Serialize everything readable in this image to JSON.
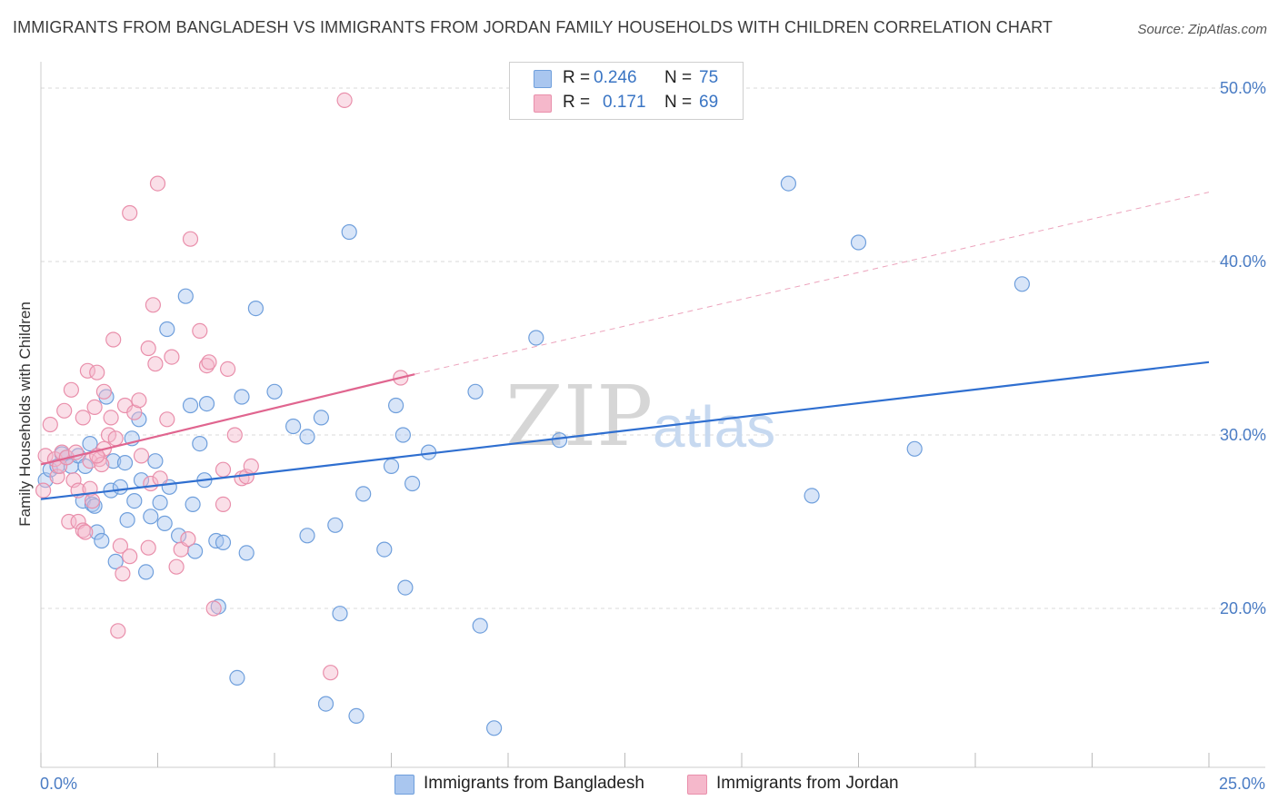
{
  "header": {
    "title": "IMMIGRANTS FROM BANGLADESH VS IMMIGRANTS FROM JORDAN FAMILY HOUSEHOLDS WITH CHILDREN CORRELATION CHART",
    "source": "Source: ZipAtlas.com"
  },
  "watermark": {
    "zip": "ZIP",
    "atlas": "atlas"
  },
  "legend": {
    "r_label": "R =",
    "n_label": "N =",
    "series": [
      {
        "name": "Immigrants from Bangladesh",
        "r": "0.246",
        "n": "75"
      },
      {
        "name": "Immigrants from Jordan",
        "r": "0.171",
        "n": "69"
      }
    ]
  },
  "colors": {
    "blue_fill": "#a9c6ef",
    "blue_stroke": "#6f9fdc",
    "blue_line": "#2f6fd0",
    "pink_fill": "#f5b8cb",
    "pink_stroke": "#e98fab",
    "pink_line": "#e0658f",
    "tick": "#4a7cc4",
    "grid": "#d9d9d9"
  },
  "chart_data": {
    "type": "scatter",
    "title": "IMMIGRANTS FROM BANGLADESH VS IMMIGRANTS FROM JORDAN FAMILY HOUSEHOLDS WITH CHILDREN CORRELATION CHART",
    "xlabel": "",
    "ylabel": "Family Households with Children",
    "xlim": [
      0,
      25
    ],
    "ylim": [
      10,
      51
    ],
    "x_tick_labels": [
      {
        "value": 0,
        "label": "0.0%"
      },
      {
        "value": 25,
        "label": "25.0%"
      }
    ],
    "y_ticks": [
      {
        "value": 20,
        "label": "20.0%"
      },
      {
        "value": 30,
        "label": "30.0%"
      },
      {
        "value": 40,
        "label": "40.0%"
      },
      {
        "value": 50,
        "label": "50.0%"
      }
    ],
    "grid": true,
    "series": [
      {
        "name": "Immigrants from Bangladesh",
        "color": "blue",
        "trend": {
          "x": [
            0,
            25
          ],
          "y": [
            26.3,
            34.2
          ],
          "dashed": false
        },
        "points": [
          [
            0.1,
            27.4
          ],
          [
            0.2,
            28.0
          ],
          [
            0.35,
            28.2
          ],
          [
            0.45,
            28.9
          ],
          [
            0.55,
            28.7
          ],
          [
            0.65,
            28.2
          ],
          [
            0.8,
            28.8
          ],
          [
            0.95,
            28.2
          ],
          [
            1.05,
            29.5
          ],
          [
            0.9,
            26.2
          ],
          [
            1.1,
            26.0
          ],
          [
            1.15,
            25.9
          ],
          [
            1.2,
            24.4
          ],
          [
            1.3,
            23.9
          ],
          [
            1.4,
            32.2
          ],
          [
            1.5,
            26.8
          ],
          [
            1.55,
            28.5
          ],
          [
            1.6,
            22.7
          ],
          [
            1.7,
            27.0
          ],
          [
            1.8,
            28.4
          ],
          [
            1.85,
            25.1
          ],
          [
            1.95,
            29.8
          ],
          [
            2.0,
            26.2
          ],
          [
            2.1,
            30.9
          ],
          [
            2.15,
            27.4
          ],
          [
            2.25,
            22.1
          ],
          [
            2.35,
            25.3
          ],
          [
            2.45,
            28.5
          ],
          [
            2.55,
            26.1
          ],
          [
            2.65,
            24.9
          ],
          [
            2.7,
            36.1
          ],
          [
            2.75,
            27.0
          ],
          [
            2.95,
            24.2
          ],
          [
            3.1,
            38.0
          ],
          [
            3.2,
            31.7
          ],
          [
            3.25,
            26.0
          ],
          [
            3.3,
            23.3
          ],
          [
            3.4,
            29.5
          ],
          [
            3.5,
            27.4
          ],
          [
            3.55,
            31.8
          ],
          [
            3.75,
            23.9
          ],
          [
            3.8,
            20.1
          ],
          [
            3.9,
            23.8
          ],
          [
            4.2,
            16.0
          ],
          [
            4.3,
            32.2
          ],
          [
            4.4,
            23.2
          ],
          [
            4.6,
            37.3
          ],
          [
            5.0,
            32.5
          ],
          [
            5.4,
            30.5
          ],
          [
            5.7,
            24.2
          ],
          [
            5.7,
            29.9
          ],
          [
            6.0,
            31.0
          ],
          [
            6.1,
            14.5
          ],
          [
            6.3,
            24.8
          ],
          [
            6.4,
            19.7
          ],
          [
            6.6,
            41.7
          ],
          [
            6.75,
            13.8
          ],
          [
            6.9,
            26.6
          ],
          [
            7.35,
            23.4
          ],
          [
            7.5,
            28.2
          ],
          [
            7.6,
            31.7
          ],
          [
            7.75,
            30.0
          ],
          [
            7.8,
            21.2
          ],
          [
            7.95,
            27.2
          ],
          [
            8.3,
            29.0
          ],
          [
            9.3,
            32.5
          ],
          [
            9.4,
            19.0
          ],
          [
            9.7,
            13.1
          ],
          [
            10.6,
            35.6
          ],
          [
            11.1,
            29.7
          ],
          [
            16.0,
            44.5
          ],
          [
            16.5,
            26.5
          ],
          [
            17.5,
            41.1
          ],
          [
            18.7,
            29.2
          ],
          [
            21.0,
            38.7
          ]
        ]
      },
      {
        "name": "Immigrants from Jordan",
        "color": "pink",
        "trend": {
          "x": [
            0,
            8.0
          ],
          "y": [
            28.3,
            33.5
          ],
          "dashed": false,
          "extension": {
            "x": [
              8.0,
              25
            ],
            "y": [
              33.5,
              44.0
            ],
            "dashed": true
          }
        },
        "points": [
          [
            0.05,
            26.8
          ],
          [
            0.1,
            28.8
          ],
          [
            0.2,
            30.6
          ],
          [
            0.3,
            28.6
          ],
          [
            0.35,
            27.6
          ],
          [
            0.4,
            28.2
          ],
          [
            0.45,
            29.0
          ],
          [
            0.5,
            31.4
          ],
          [
            0.55,
            28.7
          ],
          [
            0.6,
            25.0
          ],
          [
            0.65,
            32.6
          ],
          [
            0.7,
            27.4
          ],
          [
            0.75,
            29.0
          ],
          [
            0.8,
            25.0
          ],
          [
            0.8,
            26.8
          ],
          [
            0.9,
            31.0
          ],
          [
            0.9,
            24.5
          ],
          [
            1.0,
            33.7
          ],
          [
            1.05,
            28.5
          ],
          [
            1.05,
            26.9
          ],
          [
            1.1,
            26.2
          ],
          [
            1.15,
            31.6
          ],
          [
            1.2,
            33.6
          ],
          [
            1.25,
            28.6
          ],
          [
            1.3,
            28.3
          ],
          [
            1.35,
            29.2
          ],
          [
            1.35,
            32.5
          ],
          [
            1.45,
            30.0
          ],
          [
            1.5,
            31.0
          ],
          [
            1.55,
            35.5
          ],
          [
            1.6,
            29.8
          ],
          [
            1.65,
            18.7
          ],
          [
            1.7,
            23.6
          ],
          [
            1.75,
            22.0
          ],
          [
            1.8,
            31.7
          ],
          [
            1.9,
            23.0
          ],
          [
            1.9,
            42.8
          ],
          [
            2.0,
            31.3
          ],
          [
            2.1,
            32.0
          ],
          [
            2.15,
            28.8
          ],
          [
            2.3,
            35.0
          ],
          [
            2.3,
            23.5
          ],
          [
            2.35,
            27.2
          ],
          [
            2.4,
            37.5
          ],
          [
            2.45,
            34.1
          ],
          [
            2.5,
            44.5
          ],
          [
            2.55,
            27.5
          ],
          [
            2.7,
            30.9
          ],
          [
            2.8,
            34.5
          ],
          [
            2.9,
            22.4
          ],
          [
            3.0,
            23.4
          ],
          [
            3.15,
            24.0
          ],
          [
            3.2,
            41.3
          ],
          [
            3.4,
            36.0
          ],
          [
            3.55,
            34.0
          ],
          [
            3.6,
            34.2
          ],
          [
            3.7,
            20.0
          ],
          [
            3.9,
            28.0
          ],
          [
            3.9,
            26.0
          ],
          [
            4.0,
            33.8
          ],
          [
            4.15,
            30.0
          ],
          [
            4.3,
            27.5
          ],
          [
            4.4,
            27.6
          ],
          [
            4.5,
            28.2
          ],
          [
            6.2,
            16.3
          ],
          [
            6.5,
            49.3
          ],
          [
            7.7,
            33.3
          ],
          [
            0.95,
            24.4
          ],
          [
            1.2,
            28.8
          ]
        ]
      }
    ]
  },
  "axes": {
    "x_min_label": "0.0%",
    "x_max_label": "25.0%"
  }
}
